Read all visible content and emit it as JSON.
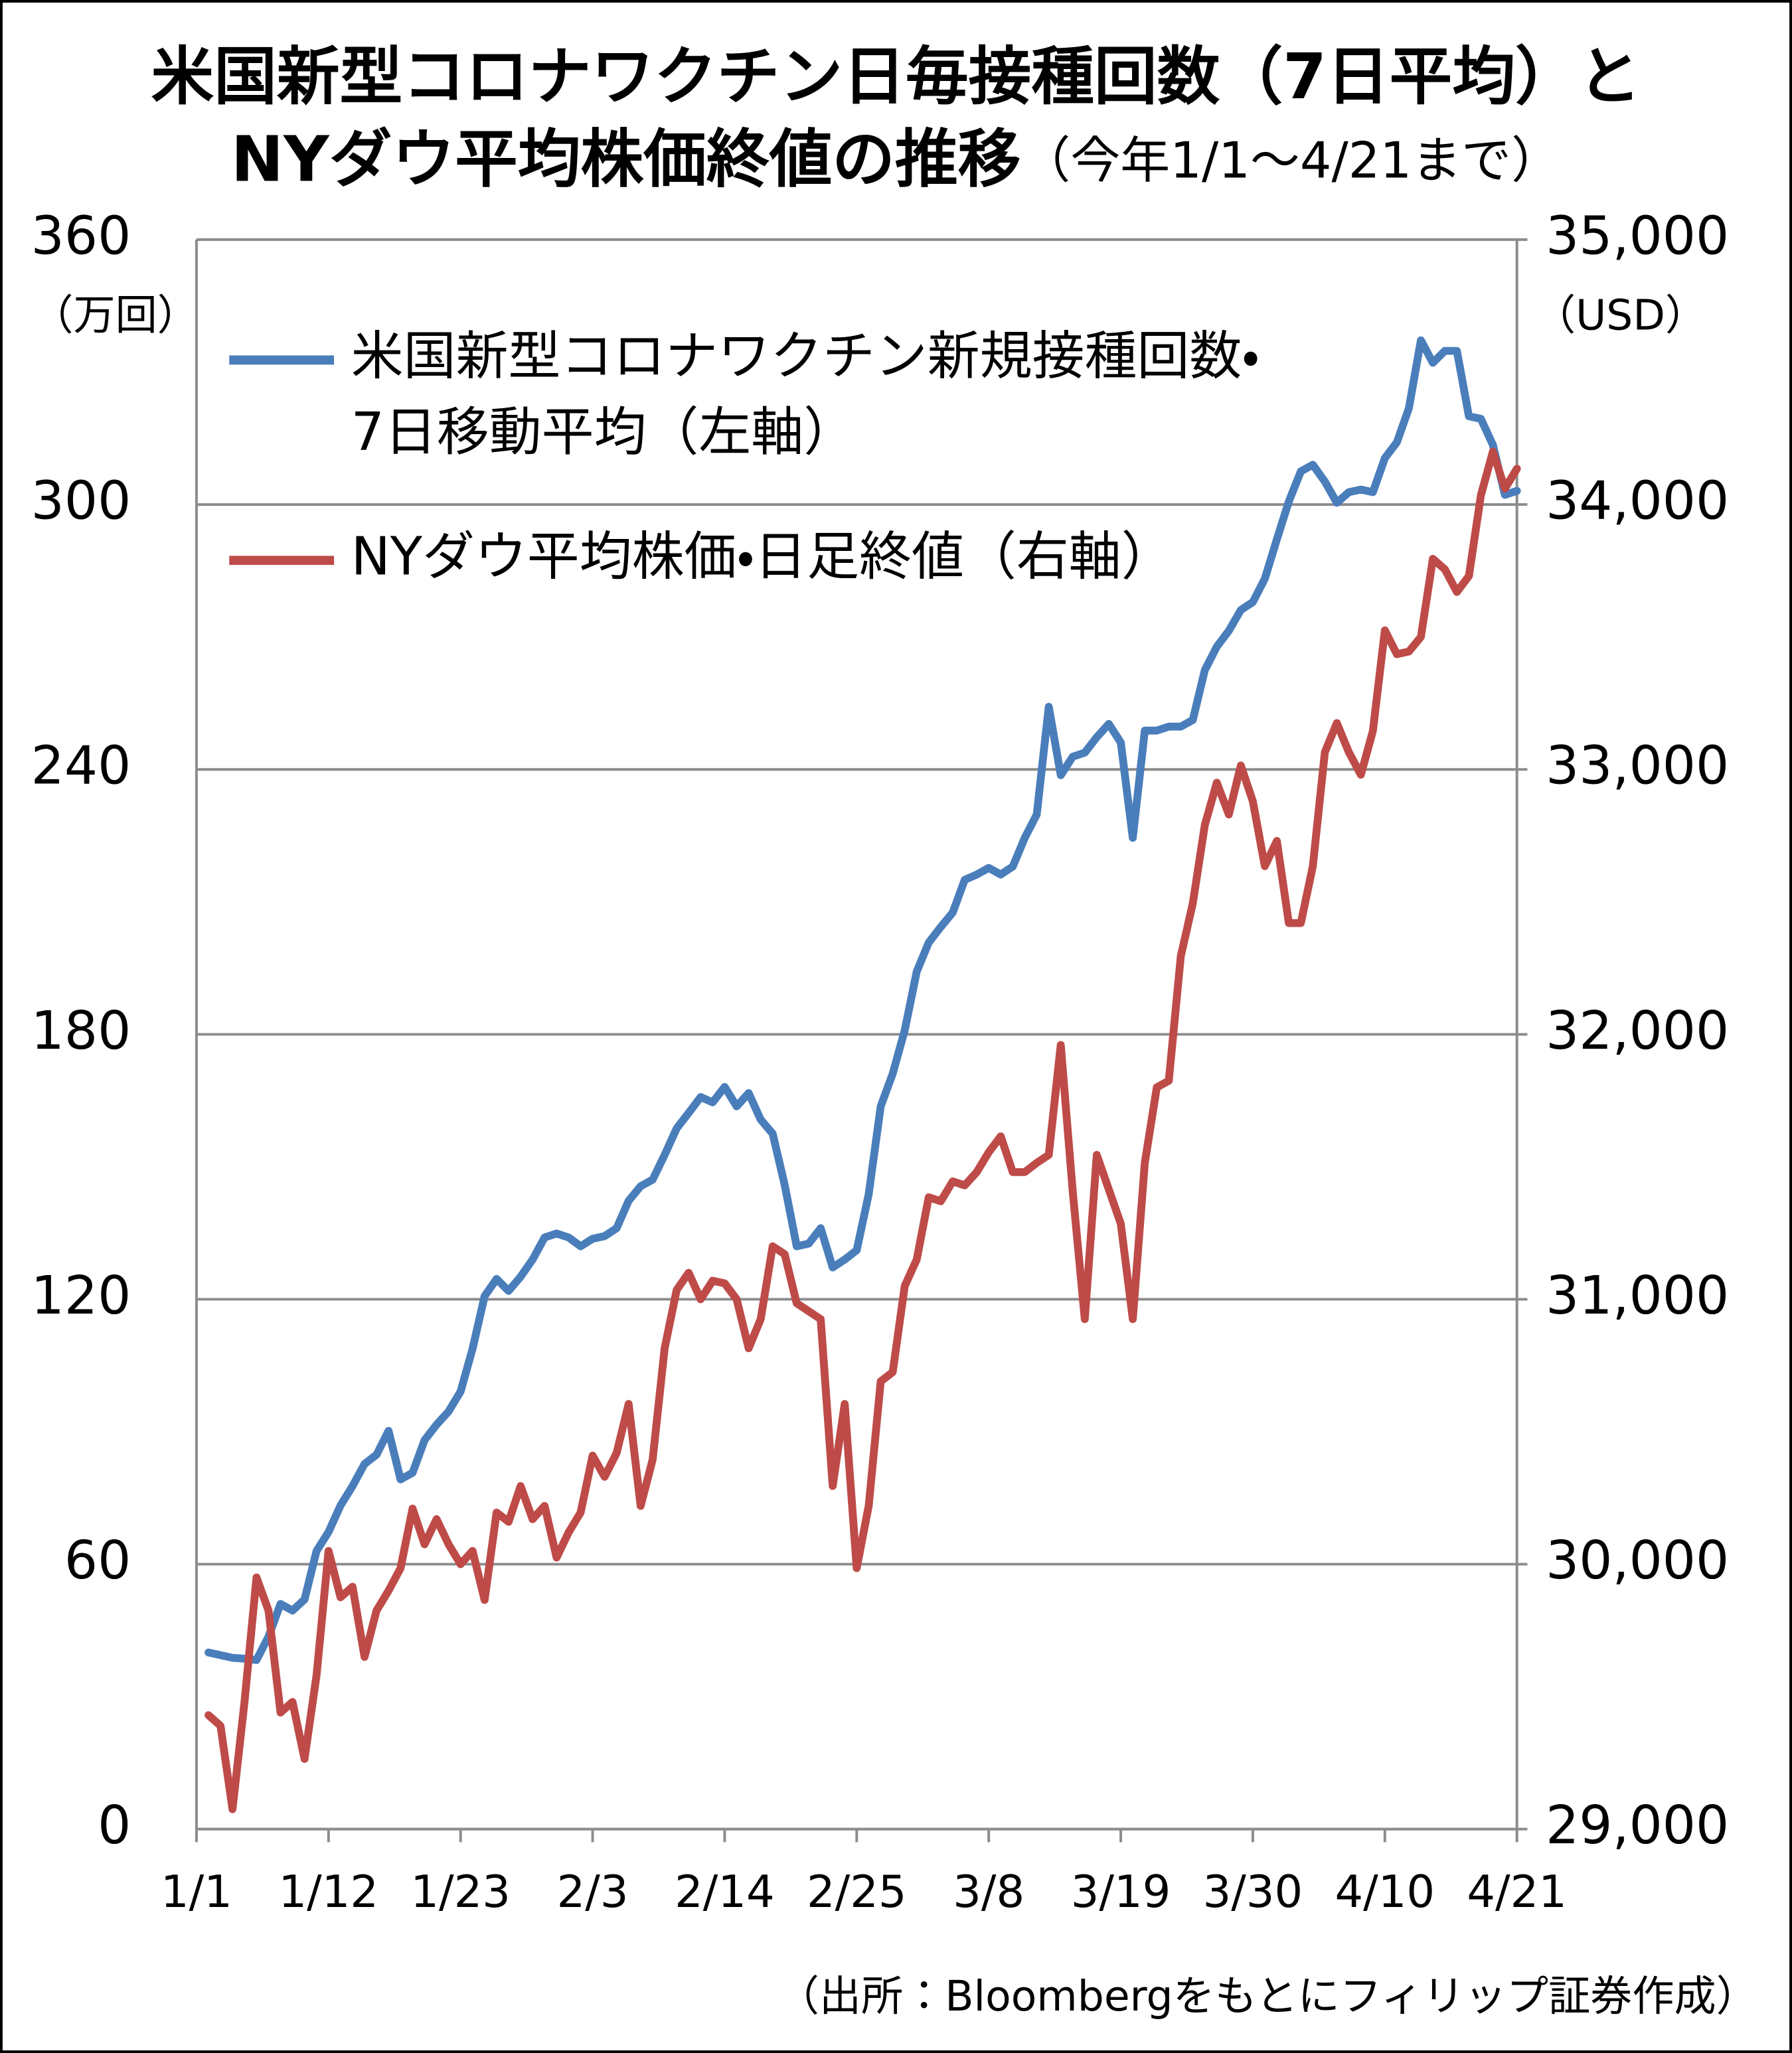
{
  "chart_data": {
    "type": "line",
    "title": "米国新型コロナワクチン日毎接種回数（7日平均）と",
    "title_line2": "NYダウ平均株価終値の推移",
    "subtitle": "（今年1/1～4/21まで）",
    "y_unit": "（万回）",
    "y2_unit": "（USD）",
    "source": "（出所：Bloombergをもとにフィリップ証券作成）",
    "x": [
      "1/1",
      null,
      null,
      null,
      null,
      null,
      null,
      null,
      null,
      null,
      null,
      "1/12",
      null,
      null,
      null,
      null,
      null,
      null,
      null,
      null,
      null,
      null,
      "1/23",
      null,
      null,
      null,
      null,
      null,
      null,
      null,
      null,
      null,
      null,
      "2/3",
      null,
      null,
      null,
      null,
      null,
      null,
      null,
      null,
      null,
      null,
      "2/14",
      null,
      null,
      null,
      null,
      null,
      null,
      null,
      null,
      null,
      null,
      "2/25",
      null,
      null,
      null,
      null,
      null,
      null,
      null,
      null,
      null,
      null,
      "3/8",
      null,
      null,
      null,
      null,
      null,
      null,
      null,
      null,
      null,
      null,
      "3/19",
      null,
      null,
      null,
      null,
      null,
      null,
      null,
      null,
      null,
      null,
      "3/30",
      null,
      null,
      null,
      null,
      null,
      null,
      null,
      null,
      null,
      null,
      "4/10",
      null,
      null,
      null,
      null,
      null,
      null,
      null,
      null,
      null,
      null,
      "4/21"
    ],
    "ylim": [
      0,
      360
    ],
    "yticks": [
      0,
      60,
      120,
      180,
      240,
      300,
      360
    ],
    "y2lim": [
      29000,
      35000
    ],
    "y2ticks": [
      {
        "value": 29000,
        "label": "29,000"
      },
      {
        "value": 30000,
        "label": "30,000"
      },
      {
        "value": 31000,
        "label": "31,000"
      },
      {
        "value": 32000,
        "label": "32,000"
      },
      {
        "value": 33000,
        "label": "33,000"
      },
      {
        "value": 34000,
        "label": "34,000"
      },
      {
        "value": 35000,
        "label": "35,000"
      }
    ],
    "grid": true,
    "legend": "top-left",
    "series": [
      {
        "name": "米国新型コロナワクチン新規接種回数・\n7日移動平均（左軸）",
        "color": "#4a7ebb",
        "values": [
          null,
          40.0,
          39.4,
          38.8,
          38.6,
          38.3,
          43.6,
          51.0,
          49.5,
          52.0,
          63.0,
          67.3,
          73.3,
          77.7,
          82.7,
          84.8,
          90.2,
          79.2,
          80.7,
          88.1,
          91.6,
          94.6,
          99.1,
          108.8,
          120.7,
          124.6,
          121.9,
          125.1,
          129.0,
          134.0,
          134.9,
          134.0,
          132.0,
          133.7,
          134.3,
          136.1,
          142.3,
          145.6,
          147.1,
          152.7,
          158.7,
          162.2,
          165.8,
          164.6,
          168.1,
          163.7,
          166.7,
          160.7,
          157.5,
          145.9,
          132.0,
          132.6,
          136.1,
          127.2,
          129.0,
          131.1,
          143.8,
          163.7,
          171.1,
          180.9,
          194.2,
          200.8,
          204.3,
          207.6,
          215.0,
          216.2,
          217.7,
          216.2,
          218.0,
          224.5,
          229.8,
          254.2,
          238.7,
          242.9,
          243.8,
          247.3,
          250.3,
          246.1,
          224.5,
          248.8,
          248.8,
          249.7,
          249.7,
          251.2,
          262.5,
          267.8,
          271.4,
          276.1,
          277.9,
          283.2,
          292.1,
          300.7,
          307.5,
          309.0,
          305.2,
          300.4,
          302.8,
          303.4,
          302.8,
          310.5,
          314.1,
          321.8,
          337.2,
          332.1,
          334.8,
          334.8,
          320.0,
          319.4,
          313.5,
          302.2,
          303.1
        ]
      },
      {
        "name": "NYダウ平均株価・日足終値（右軸）",
        "color": "#be4b48",
        "axis": "y2",
        "values": [
          null,
          29430,
          29390,
          29075,
          29480,
          29950,
          29825,
          29440,
          29480,
          29265,
          29580,
          30050,
          29875,
          29915,
          29650,
          29825,
          29900,
          29985,
          30210,
          30075,
          30170,
          30075,
          30000,
          30050,
          29865,
          30195,
          30160,
          30295,
          30170,
          30220,
          30025,
          30120,
          30195,
          30410,
          30330,
          30420,
          30605,
          30220,
          30395,
          30815,
          31035,
          31100,
          31000,
          31070,
          31060,
          31000,
          30815,
          30925,
          31200,
          31170,
          30985,
          30955,
          30925,
          30295,
          30605,
          29985,
          30220,
          30690,
          30725,
          31050,
          31150,
          31385,
          31370,
          31445,
          31430,
          31480,
          31555,
          31615,
          31480,
          31480,
          31515,
          31545,
          31960,
          31405,
          30925,
          31545,
          31415,
          31285,
          30925,
          31515,
          31800,
          31825,
          32295,
          32495,
          32790,
          32950,
          32830,
          33015,
          32880,
          32635,
          32730,
          32420,
          32420,
          32635,
          33065,
          33175,
          33065,
          32980,
          33145,
          33525,
          33435,
          33445,
          33500,
          33795,
          33755,
          33670,
          33730,
          34035,
          34200,
          34060,
          34135
        ]
      }
    ]
  }
}
